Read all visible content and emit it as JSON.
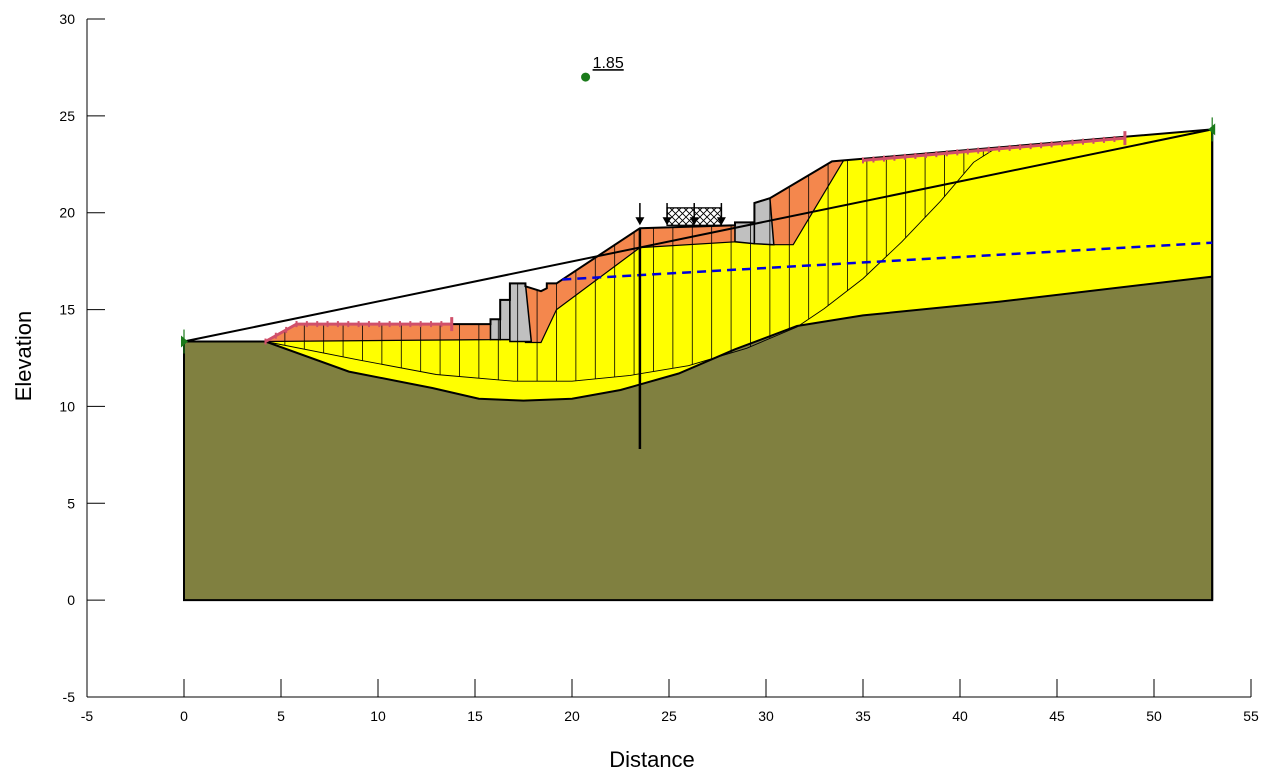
{
  "axes": {
    "x_label": "Distance",
    "y_label": "Elevation",
    "x_range": [
      -5,
      55
    ],
    "y_range": [
      -5,
      30
    ],
    "x_ticks": [
      "-5",
      "0",
      "5",
      "10",
      "15",
      "20",
      "25",
      "30",
      "35",
      "40",
      "45",
      "50",
      "55"
    ],
    "y_ticks": [
      "-5",
      "0",
      "5",
      "10",
      "15",
      "20",
      "25",
      "30"
    ]
  },
  "result": {
    "factor_of_safety": "1.85",
    "slip_center": [
      20.7,
      27.0
    ]
  },
  "materials": {
    "bedrock_color": "#808040",
    "soil_color": "#ffff00",
    "fill_color": "#f4874d",
    "wall_color": "#c0c0c0",
    "reinforcement_color": "#d0506a",
    "water_table_color": "#0000dd"
  },
  "geometry": {
    "bedrock_top": [
      [
        0,
        13.35
      ],
      [
        4.2,
        13.35
      ],
      [
        8.5,
        11.8
      ],
      [
        12.8,
        10.95
      ],
      [
        15.2,
        10.4
      ],
      [
        17.5,
        10.3
      ],
      [
        20,
        10.4
      ],
      [
        22.5,
        10.85
      ],
      [
        25.5,
        11.7
      ],
      [
        28.4,
        12.95
      ],
      [
        31.6,
        14.15
      ],
      [
        35,
        14.7
      ],
      [
        42,
        15.4
      ],
      [
        53,
        16.7
      ]
    ],
    "ground_surface": [
      [
        0,
        13.35
      ],
      [
        4.2,
        13.35
      ],
      [
        5.8,
        14.25
      ],
      [
        15.8,
        14.25
      ],
      [
        15.8,
        14.5
      ],
      [
        16.3,
        14.5
      ],
      [
        16.3,
        15.5
      ],
      [
        16.8,
        15.5
      ],
      [
        16.8,
        16.35
      ],
      [
        17.6,
        16.35
      ],
      [
        17.6,
        16.2
      ],
      [
        18.4,
        15.95
      ],
      [
        18.7,
        16.1
      ],
      [
        18.7,
        16.35
      ],
      [
        19.2,
        16.35
      ],
      [
        23.5,
        19.2
      ],
      [
        28.4,
        19.35
      ],
      [
        28.4,
        19.5
      ],
      [
        29.4,
        19.5
      ],
      [
        29.4,
        20.5
      ],
      [
        30.2,
        20.75
      ],
      [
        33.4,
        22.65
      ],
      [
        34,
        22.7
      ],
      [
        53,
        24.3
      ]
    ],
    "water_table": [
      [
        19.5,
        16.55
      ],
      [
        53,
        18.45
      ]
    ],
    "slip_circle": [
      [
        4.2,
        13.35
      ],
      [
        9,
        12.4
      ],
      [
        13,
        11.65
      ],
      [
        17,
        11.3
      ],
      [
        20,
        11.3
      ],
      [
        23,
        11.6
      ],
      [
        26,
        12.1
      ],
      [
        29,
        13.0
      ],
      [
        31.6,
        14.1
      ],
      [
        33,
        15.05
      ],
      [
        35,
        16.6
      ],
      [
        37,
        18.5
      ],
      [
        39,
        20.6
      ],
      [
        40.7,
        22.6
      ],
      [
        41.8,
        23.3
      ]
    ],
    "pile_x": 23.5,
    "pile_bottom": 7.8,
    "line_loads_x": [
      23.5,
      24.9,
      26.3,
      27.7
    ],
    "surcharge_x": [
      24.9,
      27.7
    ],
    "reinforcement_left": [
      [
        4.2,
        13.35
      ],
      [
        5.8,
        14.25
      ],
      [
        13.8,
        14.25
      ]
    ],
    "reinforcement_right": [
      [
        35,
        22.7
      ],
      [
        48.5,
        23.85
      ]
    ],
    "boundary_markers": [
      [
        0,
        13.35
      ],
      [
        53,
        24.3
      ]
    ]
  }
}
